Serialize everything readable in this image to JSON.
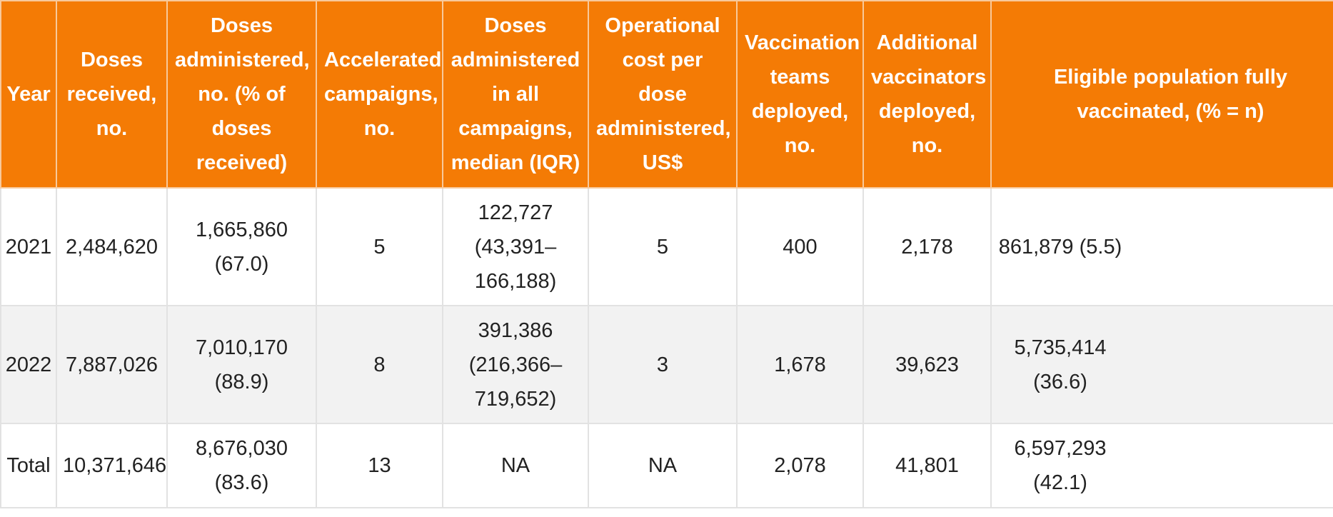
{
  "table": {
    "headers": [
      "Year",
      "Doses received, no.",
      "Doses administered, no. (% of doses received)",
      "Accelerated campaigns, no.",
      "Doses administered in all campaigns, median (IQR)",
      "Operational cost per dose administered, US$",
      "Vaccination teams deployed, no.",
      "Additional vaccinators deployed, no.",
      "Eligible population fully vaccinated, (% = n)"
    ],
    "rows": [
      [
        "2021",
        "2,484,620",
        "1,665,860 (67.0)",
        "5",
        "122,727 (43,391–166,188)",
        "5",
        "400",
        "2,178",
        "861,879 (5.5)"
      ],
      [
        "2022",
        "7,887,026",
        "7,010,170 (88.9)",
        "8",
        "391,386 (216,366–719,652)",
        "3",
        "1,678",
        "39,623",
        "5,735,414 (36.6)"
      ],
      [
        "Total",
        "10,371,646",
        "8,676,030 (83.6)",
        "13",
        "NA",
        "NA",
        "2,078",
        "41,801",
        "6,597,293 (42.1)"
      ]
    ]
  },
  "colors": {
    "header_background": "#f47b05",
    "header_text": "#ffffff",
    "row_alt_background": "#f2f2f2",
    "border": "#e2e2e2"
  }
}
